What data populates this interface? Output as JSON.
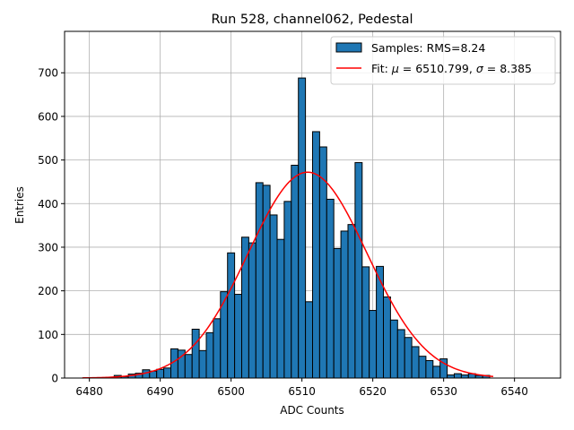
{
  "chart_data": {
    "type": "bar",
    "title": "Run 528, channel062, Pedestal",
    "xlabel": "ADC Counts",
    "ylabel": "Entries",
    "xlim": [
      6476.5,
      6546.5
    ],
    "ylim": [
      0,
      795
    ],
    "xticks": [
      6480,
      6490,
      6500,
      6510,
      6520,
      6530,
      6540
    ],
    "yticks": [
      0,
      100,
      200,
      300,
      400,
      500,
      600,
      700
    ],
    "grid": true,
    "legend_position": "top-right",
    "bar_color": "#1f77b4",
    "fit_color": "#ff0000",
    "histogram": {
      "name": "Samples: RMS=8.24",
      "bin_width": 1,
      "x": [
        6479,
        6480,
        6481,
        6482,
        6483,
        6484,
        6485,
        6486,
        6487,
        6488,
        6489,
        6490,
        6491,
        6492,
        6493,
        6494,
        6495,
        6496,
        6497,
        6498,
        6499,
        6500,
        6501,
        6502,
        6503,
        6504,
        6505,
        6506,
        6507,
        6508,
        6509,
        6510,
        6511,
        6512,
        6513,
        6514,
        6515,
        6516,
        6517,
        6518,
        6519,
        6520,
        6521,
        6522,
        6523,
        6524,
        6525,
        6526,
        6527,
        6528,
        6529,
        6530,
        6531,
        6532,
        6533,
        6534,
        6535,
        6536
      ],
      "values": [
        0,
        0,
        1,
        1,
        1,
        6,
        3,
        9,
        11,
        19,
        16,
        20,
        23,
        67,
        64,
        54,
        112,
        63,
        104,
        136,
        198,
        287,
        192,
        323,
        310,
        448,
        442,
        374,
        318,
        405,
        488,
        688,
        175,
        565,
        530,
        410,
        297,
        337,
        352,
        494,
        255,
        155,
        256,
        186,
        133,
        111,
        93,
        72,
        50,
        40,
        27,
        44,
        7,
        10,
        7,
        10,
        6,
        6
      ]
    },
    "fit": {
      "name_prefix": "Fit: ",
      "mu_label": "μ",
      "mu_value": "6510.799",
      "sigma_label": "σ",
      "sigma_value": "8.385",
      "mu": 6510.799,
      "sigma": 8.385,
      "amplitude": 472,
      "x_range": [
        6479,
        6537
      ]
    }
  }
}
